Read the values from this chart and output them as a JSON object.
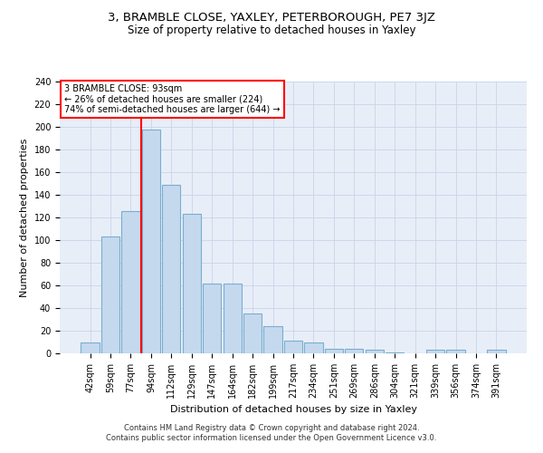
{
  "title": "3, BRAMBLE CLOSE, YAXLEY, PETERBOROUGH, PE7 3JZ",
  "subtitle": "Size of property relative to detached houses in Yaxley",
  "xlabel": "Distribution of detached houses by size in Yaxley",
  "ylabel": "Number of detached properties",
  "categories": [
    "42sqm",
    "59sqm",
    "77sqm",
    "94sqm",
    "112sqm",
    "129sqm",
    "147sqm",
    "164sqm",
    "182sqm",
    "199sqm",
    "217sqm",
    "234sqm",
    "251sqm",
    "269sqm",
    "286sqm",
    "304sqm",
    "321sqm",
    "339sqm",
    "356sqm",
    "374sqm",
    "391sqm"
  ],
  "values": [
    10,
    103,
    126,
    198,
    149,
    123,
    62,
    62,
    35,
    24,
    11,
    10,
    4,
    4,
    3,
    1,
    0,
    3,
    3,
    0,
    3
  ],
  "bar_color": "#c5d9ee",
  "bar_edge_color": "#7aaed0",
  "annotation_text": "3 BRAMBLE CLOSE: 93sqm\n← 26% of detached houses are smaller (224)\n74% of semi-detached houses are larger (644) →",
  "annotation_box_color": "white",
  "annotation_box_edge_color": "red",
  "ylim": [
    0,
    240
  ],
  "yticks": [
    0,
    20,
    40,
    60,
    80,
    100,
    120,
    140,
    160,
    180,
    200,
    220,
    240
  ],
  "grid_color": "#c8d4e8",
  "background_color": "#e8eef8",
  "footer_line1": "Contains HM Land Registry data © Crown copyright and database right 2024.",
  "footer_line2": "Contains public sector information licensed under the Open Government Licence v3.0.",
  "title_fontsize": 9.5,
  "subtitle_fontsize": 8.5,
  "xlabel_fontsize": 8,
  "ylabel_fontsize": 8,
  "tick_fontsize": 7,
  "footer_fontsize": 6
}
